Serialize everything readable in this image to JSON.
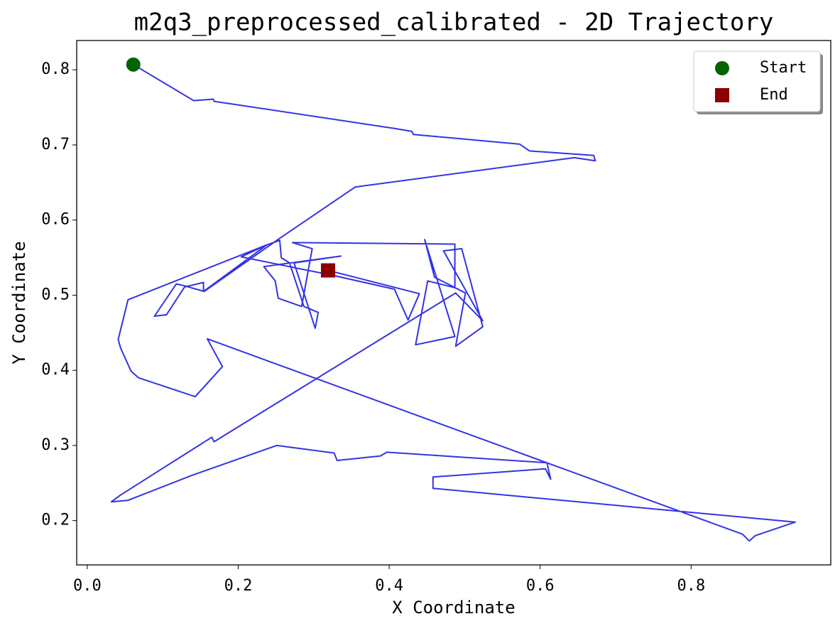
{
  "chart_data": {
    "type": "line",
    "title": "m2q3_preprocessed_calibrated - 2D Trajectory",
    "xlabel": "X Coordinate",
    "ylabel": "Y Coordinate",
    "color": "#3333e6",
    "x": [
      0.061,
      0.141,
      0.167,
      0.168,
      0.407,
      0.43,
      0.432,
      0.573,
      0.586,
      0.671,
      0.673,
      0.645,
      0.355,
      0.254,
      0.155,
      0.127,
      0.118,
      0.089,
      0.105,
      0.129,
      0.154,
      0.154,
      0.238,
      0.255,
      0.257,
      0.268,
      0.287,
      0.306,
      0.302,
      0.274,
      0.336,
      0.234,
      0.249,
      0.253,
      0.284,
      0.298,
      0.272,
      0.487,
      0.487,
      0.451,
      0.435,
      0.487,
      0.447,
      0.46,
      0.501,
      0.488,
      0.524,
      0.496,
      0.472,
      0.524,
      0.488,
      0.168,
      0.165,
      0.044,
      0.032,
      0.054,
      0.138,
      0.251,
      0.327,
      0.331,
      0.388,
      0.397,
      0.609,
      0.614,
      0.607,
      0.458,
      0.458,
      0.938,
      0.885,
      0.877,
      0.868,
      0.159,
      0.179,
      0.143,
      0.068,
      0.058,
      0.044,
      0.041,
      0.054,
      0.238,
      0.204,
      0.327,
      0.407,
      0.425,
      0.44,
      0.319
    ],
    "y": [
      0.807,
      0.759,
      0.761,
      0.758,
      0.722,
      0.718,
      0.714,
      0.701,
      0.692,
      0.686,
      0.679,
      0.683,
      0.644,
      0.575,
      0.505,
      0.513,
      0.515,
      0.472,
      0.474,
      0.511,
      0.517,
      0.505,
      0.567,
      0.573,
      0.55,
      0.543,
      0.485,
      0.477,
      0.456,
      0.543,
      0.552,
      0.538,
      0.519,
      0.496,
      0.485,
      0.562,
      0.57,
      0.568,
      0.51,
      0.519,
      0.434,
      0.445,
      0.574,
      0.524,
      0.503,
      0.432,
      0.458,
      0.562,
      0.559,
      0.466,
      0.503,
      0.305,
      0.311,
      0.234,
      0.225,
      0.227,
      0.26,
      0.3,
      0.29,
      0.28,
      0.286,
      0.291,
      0.277,
      0.255,
      0.269,
      0.258,
      0.243,
      0.198,
      0.18,
      0.173,
      0.182,
      0.442,
      0.405,
      0.365,
      0.39,
      0.399,
      0.43,
      0.441,
      0.494,
      0.567,
      0.551,
      0.526,
      0.508,
      0.467,
      0.502,
      0.533
    ],
    "markers": [
      {
        "name": "Start",
        "color": "#006400",
        "shape": "circle",
        "x": [
          0.061
        ],
        "y": [
          0.807
        ]
      },
      {
        "name": "End",
        "color": "#8b0000",
        "shape": "square",
        "x": [
          0.319
        ],
        "y": [
          0.533
        ]
      }
    ],
    "xlim": [
      -0.014,
      0.985
    ],
    "ylim": [
      0.141,
      0.839
    ],
    "xticks": [
      {
        "value": 0,
        "label": "0.0"
      },
      0.2,
      0.4,
      0.6,
      0.8
    ],
    "yticks": [
      0.2,
      0.3,
      0.4,
      0.5,
      0.6,
      0.7,
      0.8
    ],
    "legend": "upper right"
  }
}
